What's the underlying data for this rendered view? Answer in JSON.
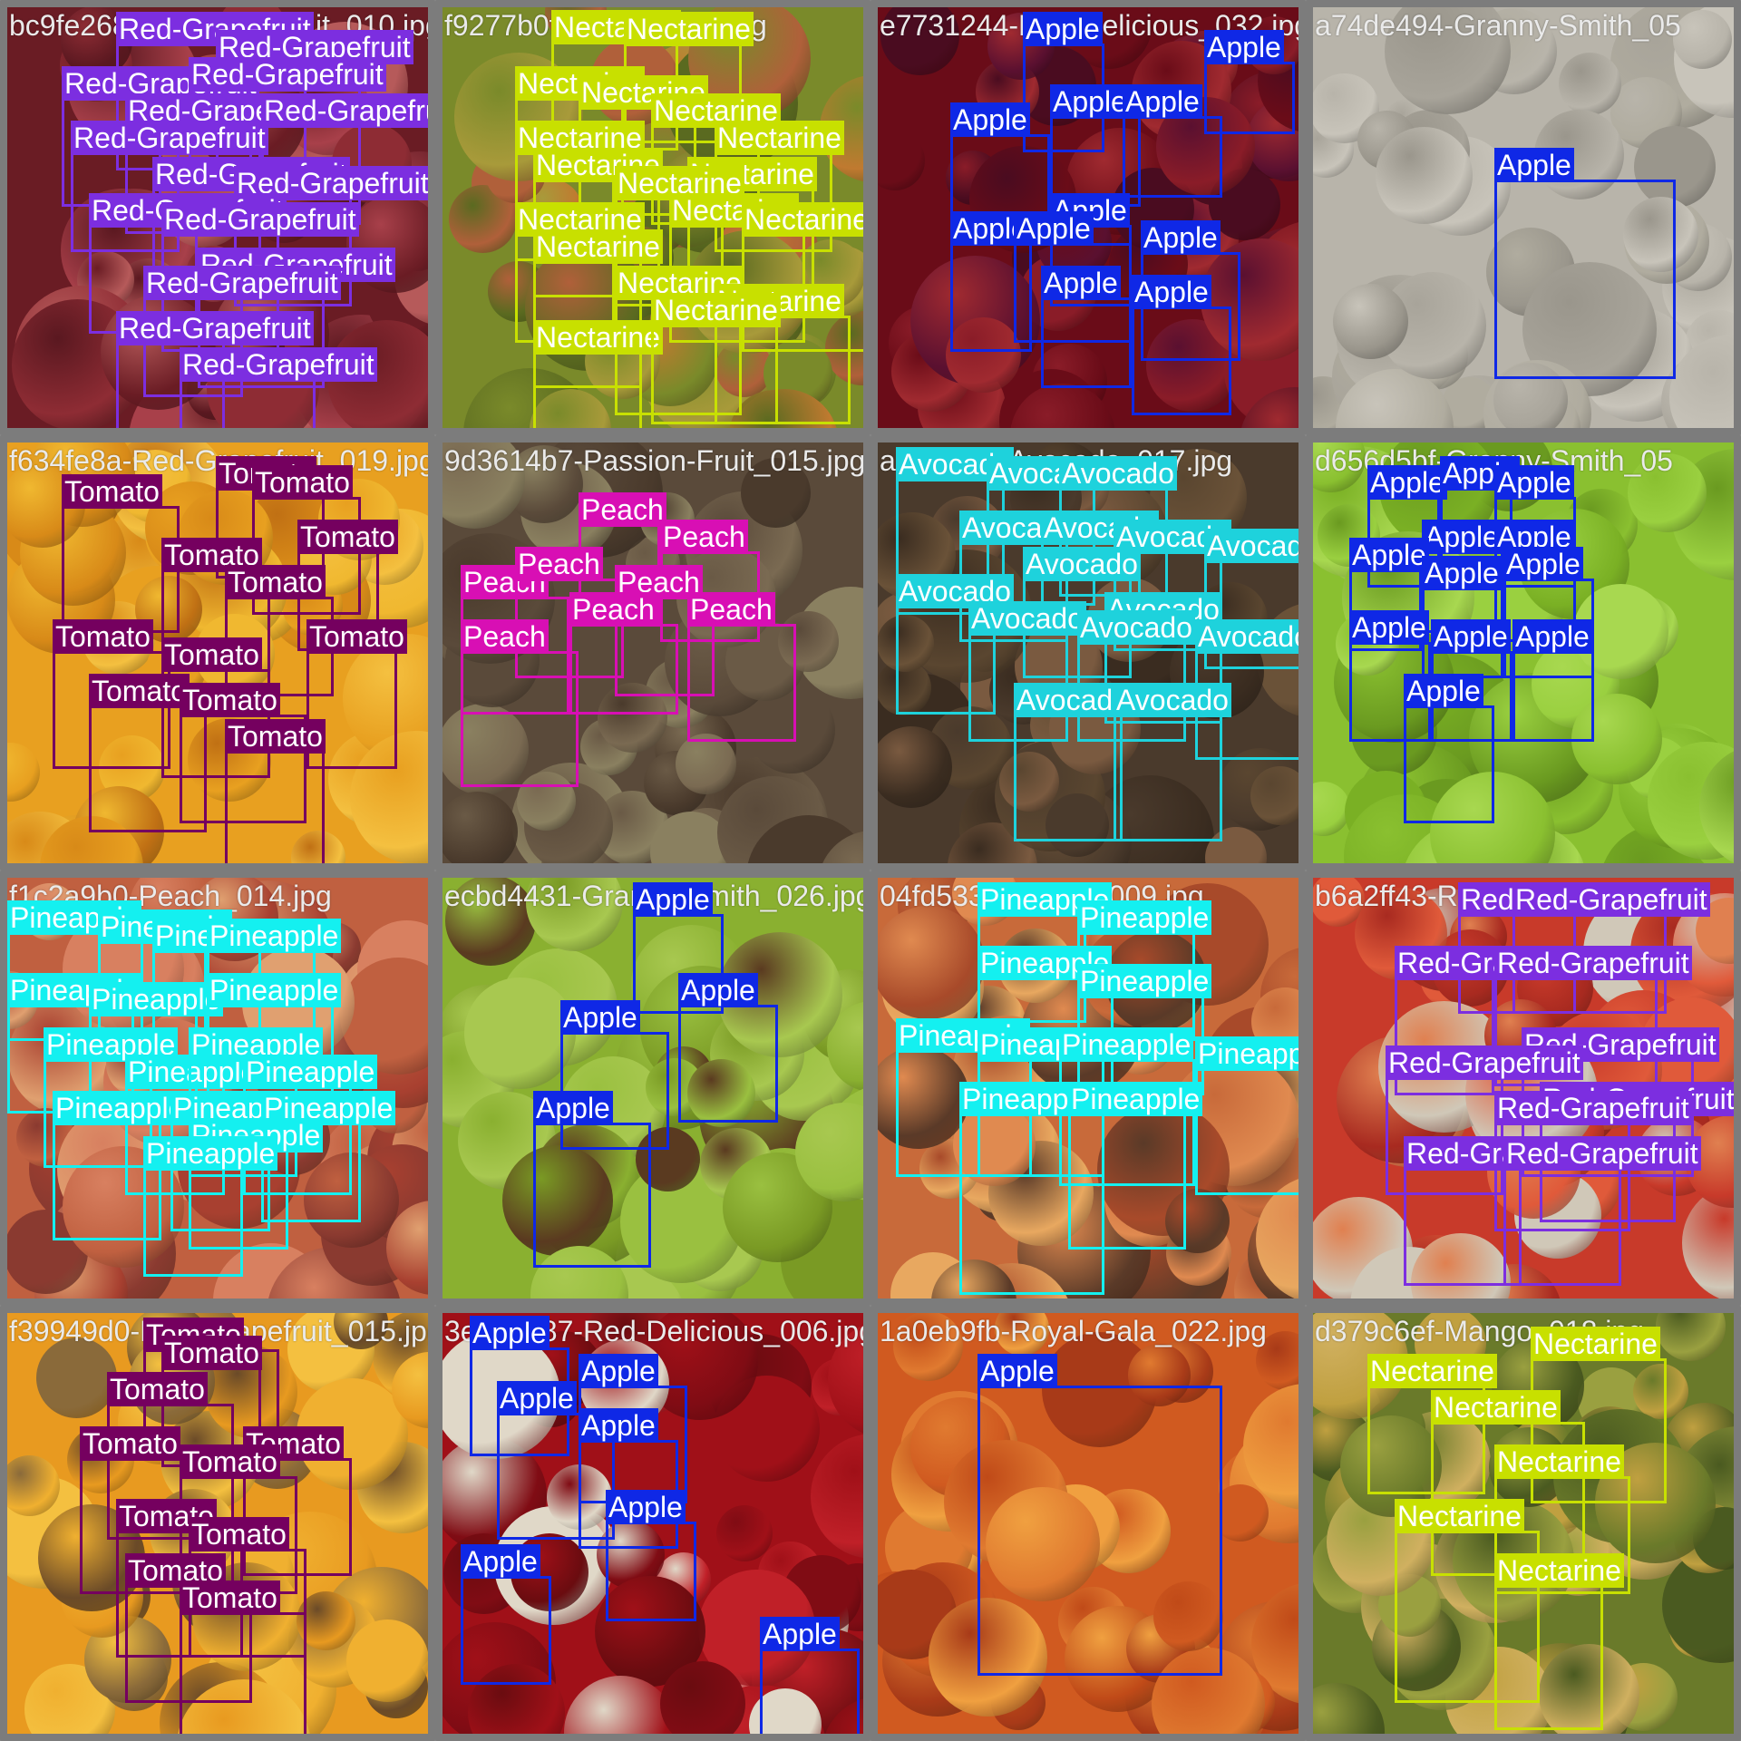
{
  "colors": {
    "Red-Grapefruit": "#7c2ee0",
    "Nectarine": "#c8e000",
    "Apple": "#0f28e6",
    "Tomato": "#75005f",
    "Peach": "#d80fb4",
    "Avocado": "#1ed2dc",
    "Pineapple": "#14f0f0"
  },
  "tiles": [
    {
      "title": "bc9fe268-Red-Grapefruit_010.jpg",
      "palette": [
        "#6a1c24",
        "#8e2c34",
        "#a8404a",
        "#5a1820",
        "#b65a5a"
      ],
      "detections": [
        {
          "label": "Red-Grapefruit"
        },
        {
          "label": "Red-Grapefruit"
        },
        {
          "label": "Red-Grapefruit"
        },
        {
          "label": "Red-Grapefruit"
        },
        {
          "label": "Red-Grapefruit"
        },
        {
          "label": "Red-Grapefruit"
        },
        {
          "label": "Red-Grapefruit"
        },
        {
          "label": "Red-Grapefruit"
        },
        {
          "label": "Red-Grapefruit"
        },
        {
          "label": "Red-Grapefruit"
        },
        {
          "label": "Red-Grapefruit"
        },
        {
          "label": "Red-Grapefruit"
        },
        {
          "label": "Red-Grapefruit"
        },
        {
          "label": "Red-Grapefruit"
        },
        {
          "label": "Red-Grapefruit"
        }
      ]
    },
    {
      "title": "f9277b0f-Mango_008.jpg",
      "palette": [
        "#7a8a2a",
        "#a89a3a",
        "#c07a30",
        "#5a6a20",
        "#b0603a"
      ],
      "detections": [
        {
          "label": "Nectarine"
        },
        {
          "label": "Nectarine"
        },
        {
          "label": "Nectarine"
        },
        {
          "label": "Nectarine"
        },
        {
          "label": "Nectarine"
        },
        {
          "label": "Nectarine"
        },
        {
          "label": "Nectarine"
        },
        {
          "label": "Nectarine"
        },
        {
          "label": "Nectarine"
        },
        {
          "label": "Nectarine"
        },
        {
          "label": "Nectarine"
        },
        {
          "label": "Nectarine"
        },
        {
          "label": "Nectarine"
        },
        {
          "label": "Nectarine"
        },
        {
          "label": "Nectarine"
        },
        {
          "label": "Nectarine"
        },
        {
          "label": "Nectarine"
        },
        {
          "label": "Nectarine"
        }
      ]
    },
    {
      "title": "e7731244-Red-Delicious_032.jpg",
      "palette": [
        "#6a0c18",
        "#8a1c28",
        "#5a1030",
        "#a02a30",
        "#4a0c20"
      ],
      "detections": [
        {
          "label": "Apple"
        },
        {
          "label": "Apple"
        },
        {
          "label": "Apple"
        },
        {
          "label": "Apple"
        },
        {
          "label": "Apple"
        },
        {
          "label": "Apple"
        },
        {
          "label": "Apple"
        },
        {
          "label": "Apple"
        },
        {
          "label": "Apple"
        },
        {
          "label": "Apple"
        },
        {
          "label": "Apple"
        }
      ]
    },
    {
      "title": "a74de494-Granny-Smith_05",
      "palette": [
        "#b8b4aa",
        "#a8a49a",
        "#c8c4ba",
        "#9a968c",
        "#b0ac9f"
      ],
      "detections": [
        {
          "label": "Apple"
        }
      ]
    },
    {
      "title": "f634fe8a-Red-Grapefruit_019.jpg",
      "palette": [
        "#e8a020",
        "#f0b830",
        "#d88a18",
        "#c07014",
        "#f4c040"
      ],
      "detections": [
        {
          "label": "Tomato"
        },
        {
          "label": "Tomato"
        },
        {
          "label": "Tomato"
        },
        {
          "label": "Tomato"
        },
        {
          "label": "Tomato"
        },
        {
          "label": "Tomato"
        },
        {
          "label": "Tomato"
        },
        {
          "label": "Tomato"
        },
        {
          "label": "Tomato"
        },
        {
          "label": "Tomato"
        },
        {
          "label": "Tomato"
        },
        {
          "label": "Tomato"
        }
      ]
    },
    {
      "title": "9d3614b7-Passion-Fruit_015.jpg",
      "palette": [
        "#5a4a3a",
        "#6a5a46",
        "#7a6a52",
        "#4a3a2c",
        "#8a8060"
      ],
      "detections": [
        {
          "label": "Peach"
        },
        {
          "label": "Peach"
        },
        {
          "label": "Peach"
        },
        {
          "label": "Peach"
        },
        {
          "label": "Peach"
        },
        {
          "label": "Peach"
        },
        {
          "label": "Peach"
        },
        {
          "label": "Peach"
        }
      ]
    },
    {
      "title": "a7c3f0e7-Avocado_017.jpg",
      "palette": [
        "#4a3a2c",
        "#5a4630",
        "#6a5238",
        "#3a2c20",
        "#7a5a40"
      ],
      "detections": [
        {
          "label": "Avocado"
        },
        {
          "label": "Avocado"
        },
        {
          "label": "Avocado"
        },
        {
          "label": "Avocado"
        },
        {
          "label": "Avocado"
        },
        {
          "label": "Avocado"
        },
        {
          "label": "Avocado"
        },
        {
          "label": "Avocado"
        },
        {
          "label": "Avocado"
        },
        {
          "label": "Avocado"
        },
        {
          "label": "Avocado"
        },
        {
          "label": "Avocado"
        },
        {
          "label": "Avocado"
        },
        {
          "label": "Avocado"
        },
        {
          "label": "Avocado"
        }
      ]
    },
    {
      "title": "d656d5bf-Granny-Smith_05",
      "palette": [
        "#8ac030",
        "#9ad040",
        "#7ab024",
        "#a8d850",
        "#6a9a20"
      ],
      "detections": [
        {
          "label": "Apple"
        },
        {
          "label": "Apple"
        },
        {
          "label": "Apple"
        },
        {
          "label": "Apple"
        },
        {
          "label": "Apple"
        },
        {
          "label": "Apple"
        },
        {
          "label": "Apple"
        },
        {
          "label": "Apple"
        },
        {
          "label": "Apple"
        },
        {
          "label": "Apple"
        },
        {
          "label": "Apple"
        },
        {
          "label": "Apple"
        }
      ]
    },
    {
      "title": "f1c2a9b0-Peach_014.jpg",
      "palette": [
        "#c06040",
        "#d88060",
        "#a84030",
        "#e0a070",
        "#8a3a30"
      ],
      "detections": [
        {
          "label": "Pineapple"
        },
        {
          "label": "Pineapple"
        },
        {
          "label": "Pineapple"
        },
        {
          "label": "Pineapple"
        },
        {
          "label": "Pineapple"
        },
        {
          "label": "Pineapple"
        },
        {
          "label": "Pineapple"
        },
        {
          "label": "Pineapple"
        },
        {
          "label": "Pineapple"
        },
        {
          "label": "Pineapple"
        },
        {
          "label": "Pineapple"
        },
        {
          "label": "Pineapple"
        },
        {
          "label": "Pineapple"
        },
        {
          "label": "Pineapple"
        },
        {
          "label": "Pineapple"
        },
        {
          "label": "Pineapple"
        }
      ]
    },
    {
      "title": "ecbd4431-Granny-Smith_026.jpg",
      "palette": [
        "#8ab030",
        "#9ac040",
        "#7a9a24",
        "#a8c850",
        "#5a3a20"
      ],
      "detections": [
        {
          "label": "Apple"
        },
        {
          "label": "Apple"
        },
        {
          "label": "Apple"
        },
        {
          "label": "Apple"
        }
      ]
    },
    {
      "title": "04fd533b-Peach_009.jpg",
      "palette": [
        "#c86a3a",
        "#e08a50",
        "#a84a2a",
        "#e8a860",
        "#5a3a28"
      ],
      "detections": [
        {
          "label": "Pineapple"
        },
        {
          "label": "Pineapple"
        },
        {
          "label": "Pineapple"
        },
        {
          "label": "Pineapple"
        },
        {
          "label": "Pineapple"
        },
        {
          "label": "Pineapple"
        },
        {
          "label": "Pineapple"
        },
        {
          "label": "Pineapple"
        },
        {
          "label": "Pineapple"
        },
        {
          "label": "Pineapple"
        }
      ]
    },
    {
      "title": "b6a2ff43-Red-Grapefruit_0",
      "palette": [
        "#c83a2a",
        "#e05a3a",
        "#a82a20",
        "#e08050",
        "#d0c8b8"
      ],
      "detections": [
        {
          "label": "Red-Grapefruit"
        },
        {
          "label": "Red-Grapefruit"
        },
        {
          "label": "Red-Grapefruit"
        },
        {
          "label": "Red-Grapefruit"
        },
        {
          "label": "Red-Grapefruit"
        },
        {
          "label": "Red-Grapefruit"
        },
        {
          "label": "Red-Grapefruit"
        },
        {
          "label": "Red-Grapefruit"
        },
        {
          "label": "Red-Grapefruit"
        },
        {
          "label": "Red-Grapefruit"
        }
      ]
    },
    {
      "title": "f39949d0-Red-Grapefruit_015.jpg",
      "palette": [
        "#e89a20",
        "#f0b030",
        "#8a6a3a",
        "#6a4a28",
        "#f4c040"
      ],
      "detections": [
        {
          "label": "Tomato"
        },
        {
          "label": "Tomato"
        },
        {
          "label": "Tomato"
        },
        {
          "label": "Tomato"
        },
        {
          "label": "Tomato"
        },
        {
          "label": "Tomato"
        },
        {
          "label": "Tomato"
        },
        {
          "label": "Tomato"
        },
        {
          "label": "Tomato"
        },
        {
          "label": "Tomato"
        }
      ]
    },
    {
      "title": "3e47a587-Red-Delicious_006.jpg",
      "palette": [
        "#a01018",
        "#c02028",
        "#800c14",
        "#e0d8c8",
        "#6a0c10"
      ],
      "detections": [
        {
          "label": "Apple"
        },
        {
          "label": "Apple"
        },
        {
          "label": "Apple"
        },
        {
          "label": "Apple"
        },
        {
          "label": "Apple"
        },
        {
          "label": "Apple"
        },
        {
          "label": "Apple"
        }
      ]
    },
    {
      "title": "1a0eb9fb-Royal-Gala_022.jpg",
      "palette": [
        "#d05a20",
        "#e07a30",
        "#c04a18",
        "#f0a040",
        "#a83a18"
      ],
      "detections": [
        {
          "label": "Apple"
        }
      ]
    },
    {
      "title": "d379c6ef-Mango_018.jpg",
      "palette": [
        "#6a7a2a",
        "#9aa040",
        "#c0a040",
        "#4a5a20",
        "#d0b060"
      ],
      "detections": [
        {
          "label": "Nectarine"
        },
        {
          "label": "Nectarine"
        },
        {
          "label": "Nectarine"
        },
        {
          "label": "Nectarine"
        },
        {
          "label": "Nectarine"
        },
        {
          "label": "Nectarine"
        }
      ]
    }
  ]
}
